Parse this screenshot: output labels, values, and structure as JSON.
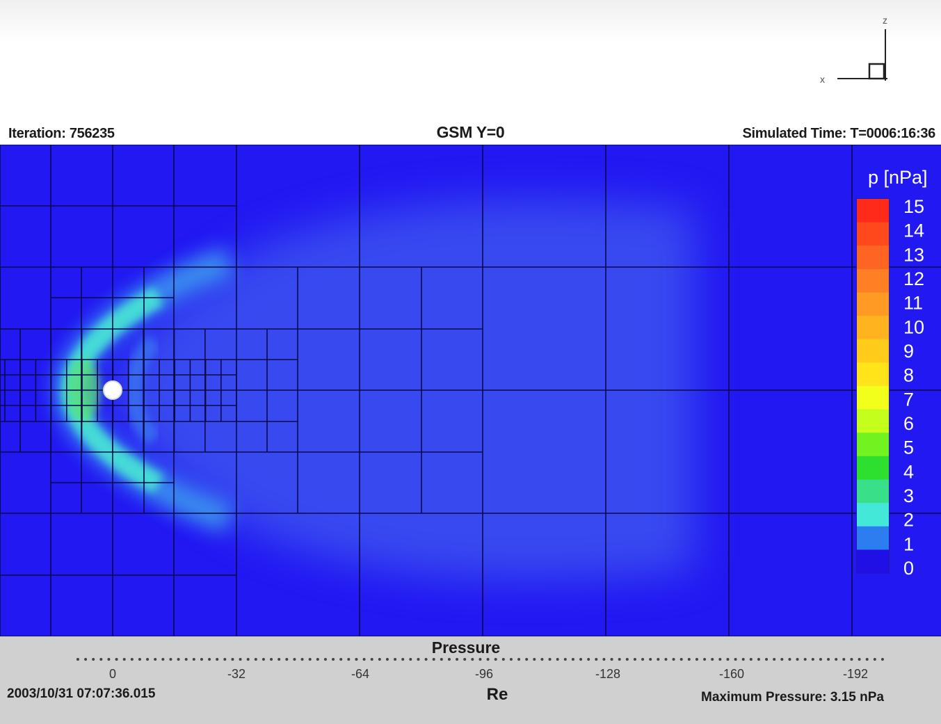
{
  "header": {
    "iteration": "Iteration: 756235",
    "title": "GSM Y=0",
    "simulated_time": "Simulated Time: T=0006:16:36"
  },
  "axes_icon": {
    "z_label": "z",
    "x_label": "x"
  },
  "footer": {
    "plot_title": "Pressure",
    "date": "2003/10/31 07:07:36.015",
    "max_pressure": "Maximum Pressure: 3.15 nPa"
  },
  "colorbar": {
    "title": "p [nPa]",
    "range": [
      0,
      15
    ],
    "ticks": [
      "15",
      "14",
      "13",
      "12",
      "11",
      "10",
      "9",
      "8",
      "7",
      "6",
      "5",
      "4",
      "3",
      "2",
      "1",
      "0"
    ],
    "colors": [
      "#ff2a1a",
      "#ff4a1e",
      "#ff6522",
      "#ff7f24",
      "#ff9a22",
      "#ffb31f",
      "#ffcc1c",
      "#ffe41a",
      "#f2ff1a",
      "#c4ff1c",
      "#72f21e",
      "#2ee02e",
      "#38e08a",
      "#44e8d8",
      "#2c7ef0",
      "#2010e6"
    ]
  },
  "chart_data": {
    "type": "heatmap",
    "title": "GSM Y=0",
    "quantity": "Pressure",
    "xlabel": "Re",
    "xlim": [
      9.5,
      -200
    ],
    "x_ticks": [
      0,
      -32,
      -64,
      -96,
      -128,
      -160,
      -192
    ],
    "x_tick_labels": [
      "0",
      "-32",
      "-64",
      "-96",
      "-128",
      "-160",
      "-192"
    ],
    "colorbar_label": "p [nPa]",
    "colorbar_range": [
      0,
      15
    ],
    "max_value": 3.15,
    "background_value": 0.3,
    "features": [
      {
        "name": "planet",
        "x": 0,
        "z": 0
      },
      {
        "name": "bow shock nose",
        "x": 11.5,
        "z": 0,
        "value": 3.0
      }
    ]
  },
  "colors": {
    "plot_background": "#2218f2",
    "grid_lines": "#0a0a4a",
    "footer_bg": "#d0d0d0"
  }
}
